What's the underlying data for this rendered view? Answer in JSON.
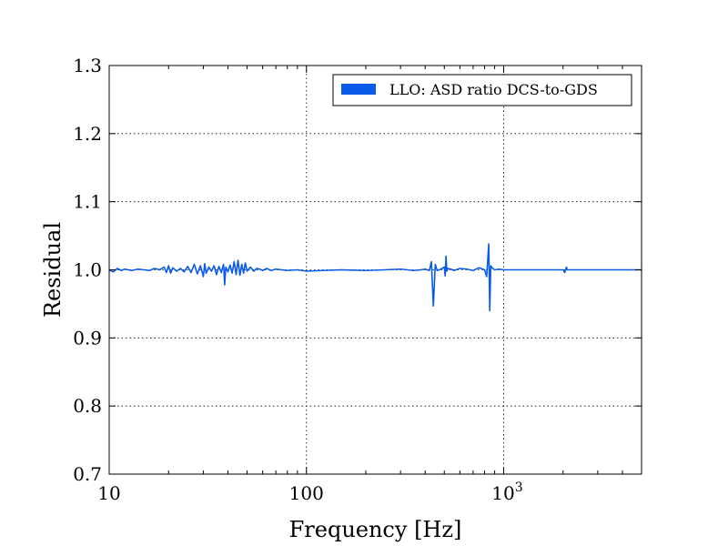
{
  "colors": {
    "series": "#0a5ce8",
    "axes": "#000000",
    "background": "#ffffff"
  },
  "chart_data": {
    "type": "line",
    "title": "",
    "xlabel": "Frequency [Hz]",
    "ylabel": "Residual",
    "xscale": "log",
    "xlim": [
      10,
      5000
    ],
    "ylim": [
      0.7,
      1.3
    ],
    "grid": true,
    "legend_placement": "top-right",
    "xticks": [
      {
        "value": 10,
        "label": "10"
      },
      {
        "value": 100,
        "label": "100"
      },
      {
        "value": 1000,
        "label": "10",
        "exponent": "3"
      }
    ],
    "yticks": [
      {
        "value": 0.7,
        "label": "0.7"
      },
      {
        "value": 0.8,
        "label": "0.8"
      },
      {
        "value": 0.9,
        "label": "0.9"
      },
      {
        "value": 1.0,
        "label": "1.0"
      },
      {
        "value": 1.1,
        "label": "1.1"
      },
      {
        "value": 1.2,
        "label": "1.2"
      },
      {
        "value": 1.3,
        "label": "1.3"
      }
    ],
    "series": [
      {
        "name": "LLO: ASD ratio DCS-to-GDS",
        "color": "#0a5ce8",
        "x": [
          10,
          10.5,
          11,
          11.5,
          12,
          13,
          14,
          15,
          16,
          17,
          18,
          19,
          19.5,
          20,
          20.5,
          21,
          22,
          23,
          24,
          25,
          26,
          27,
          28,
          29,
          30,
          30.5,
          31,
          32,
          33,
          34,
          35,
          36,
          37,
          38,
          38.5,
          39,
          40,
          41,
          42,
          43,
          44,
          45,
          46,
          47,
          48,
          49,
          50,
          52,
          54,
          56,
          58,
          60,
          63,
          66,
          70,
          75,
          80,
          90,
          100,
          120,
          150,
          200,
          250,
          300,
          350,
          380,
          400,
          420,
          430,
          440,
          450,
          460,
          480,
          500,
          505,
          510,
          515,
          520,
          540,
          560,
          600,
          650,
          700,
          750,
          800,
          820,
          840,
          850,
          860,
          880,
          900,
          950,
          1000,
          1200,
          1500,
          2000,
          2040,
          2080,
          2100,
          2500,
          3000,
          4000,
          5000
        ],
        "y": [
          1.0,
          0.997,
          1.002,
          0.999,
          1.001,
          0.999,
          1.001,
          1.0,
          0.999,
          1.002,
          1.0,
          1.004,
          0.996,
          1.006,
          0.995,
          1.003,
          0.998,
          1.002,
          0.997,
          1.005,
          0.996,
          1.008,
          0.994,
          1.006,
          0.99,
          1.009,
          0.995,
          1.004,
          0.998,
          1.006,
          0.993,
          1.005,
          0.996,
          1.008,
          0.978,
          1.004,
          0.997,
          1.007,
          0.995,
          1.012,
          0.993,
          1.014,
          0.992,
          1.008,
          0.995,
          1.01,
          0.998,
          1.004,
          0.998,
          1.002,
          1.001,
          0.999,
          1.002,
          0.999,
          1.001,
          1.0,
          0.999,
          1.0,
          0.998,
          0.999,
          1.0,
          0.999,
          1.0,
          1.001,
          0.999,
          1.0,
          1.001,
          0.999,
          1.012,
          0.947,
          1.008,
          0.999,
          1.001,
          1.004,
          0.991,
          1.02,
          0.998,
          1.002,
          1.001,
          0.999,
          1.002,
          1.001,
          0.999,
          1.003,
          1.0,
          0.99,
          1.038,
          0.94,
          1.006,
          1.002,
          1.0,
          1.001,
          1.0,
          1.0,
          1.0,
          1.0,
          0.996,
          1.004,
          1.0,
          1.0,
          1.0,
          1.0,
          1.0
        ]
      }
    ]
  }
}
